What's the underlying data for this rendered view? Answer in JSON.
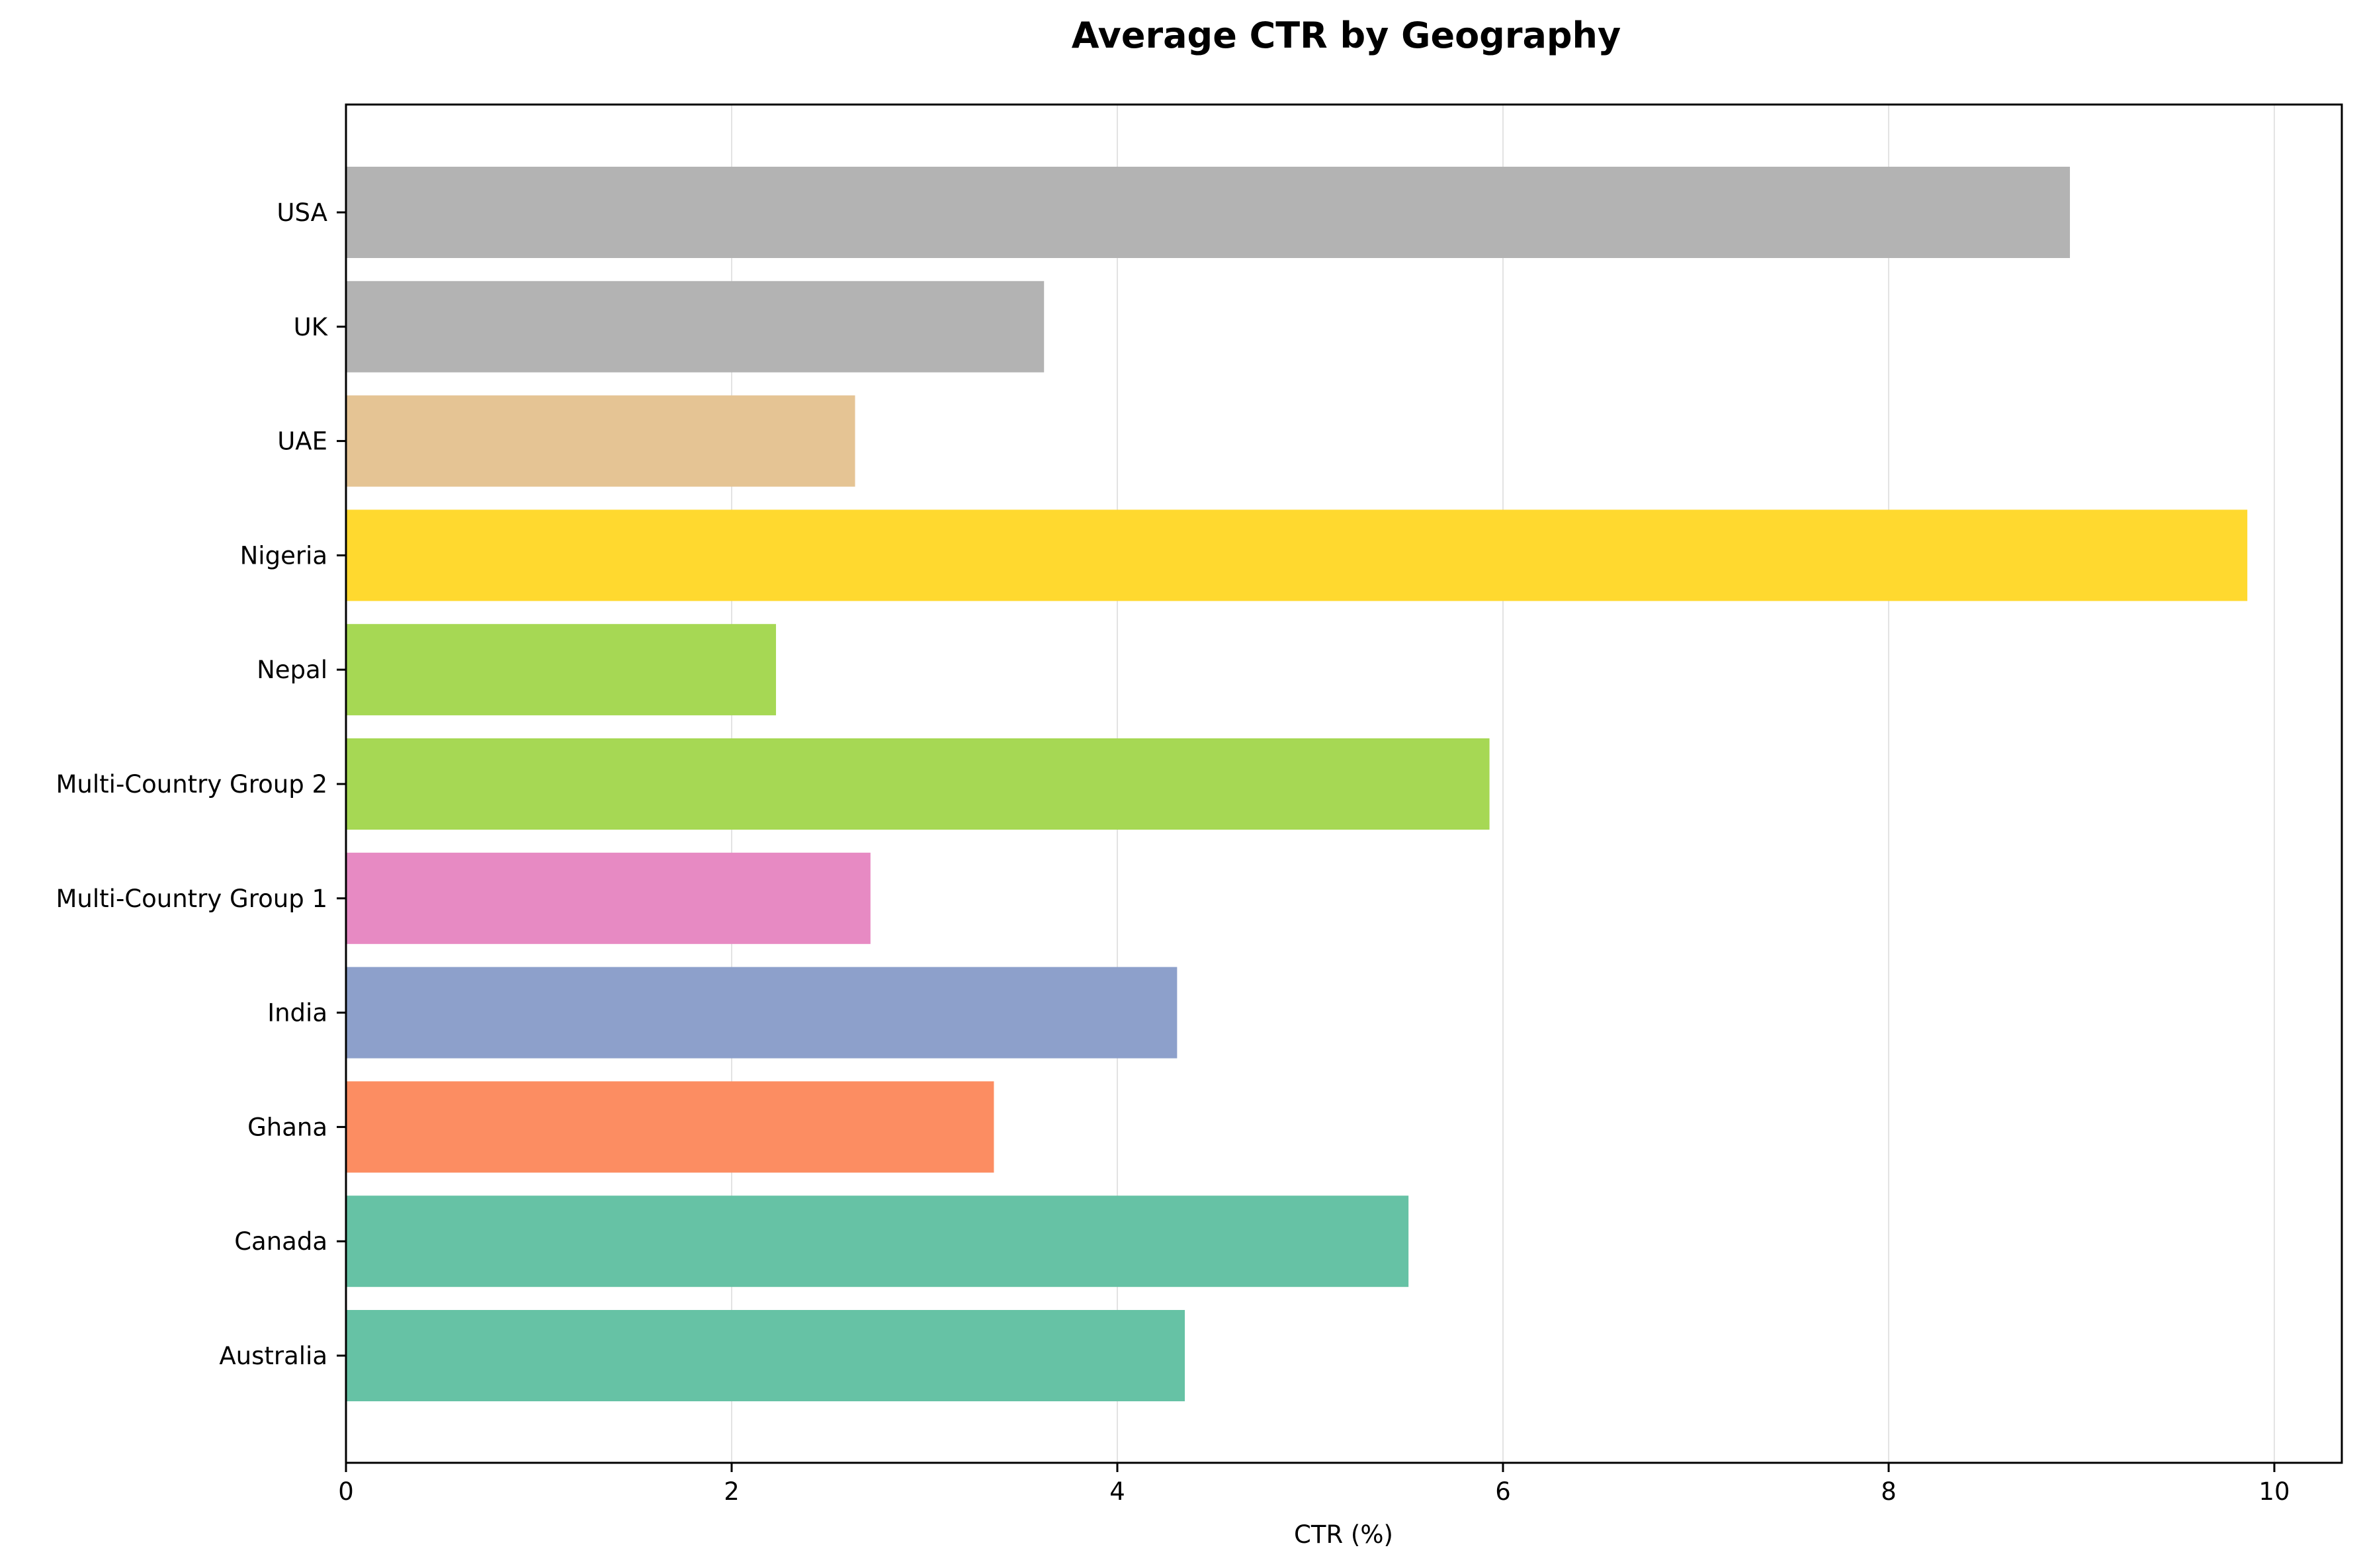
{
  "chart_data": {
    "type": "bar",
    "orientation": "horizontal",
    "title": "Average CTR by Geography",
    "xlabel": "CTR (%)",
    "ylabel": "",
    "xlim": [
      0,
      10.35
    ],
    "xticks": [
      0,
      2,
      4,
      6,
      8,
      10
    ],
    "grid": "x",
    "categories": [
      "Australia",
      "Canada",
      "Ghana",
      "India",
      "Multi-Country Group 1",
      "Multi-Country Group 2",
      "Nepal",
      "Nigeria",
      "UAE",
      "UK",
      "USA"
    ],
    "values": [
      4.35,
      5.51,
      3.36,
      4.31,
      2.72,
      5.93,
      2.23,
      9.86,
      2.64,
      3.62,
      8.94
    ],
    "colors": [
      "#66c2a5",
      "#66c2a5",
      "#fc8d62",
      "#8da0cb",
      "#e78ac3",
      "#a6d854",
      "#a6d854",
      "#ffd92f",
      "#e5c494",
      "#b3b3b3",
      "#b3b3b3"
    ]
  }
}
